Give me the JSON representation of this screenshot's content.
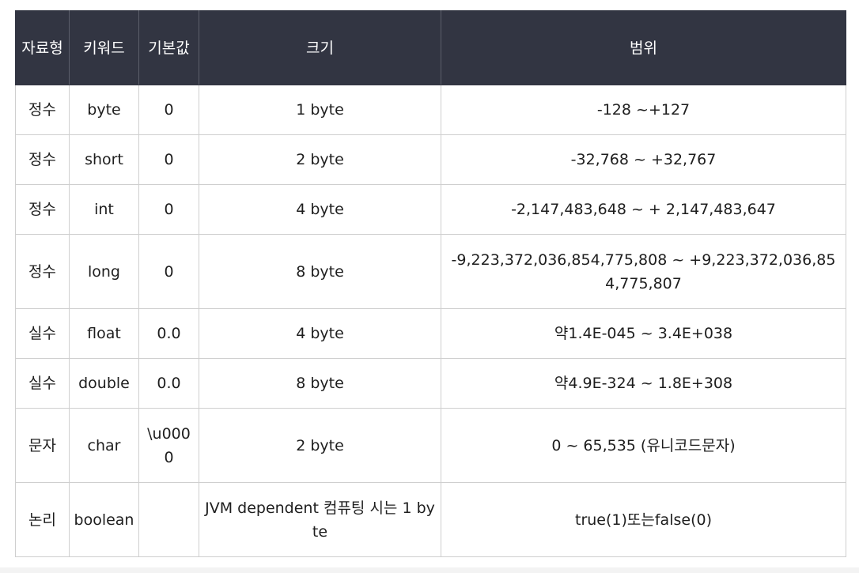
{
  "table": {
    "headers": [
      "자료형",
      "키워드",
      "기본값",
      "크기",
      "범위"
    ],
    "rows": [
      {
        "kind": "정수",
        "keyword": "byte",
        "default": "0",
        "size": "1 byte",
        "range": "-128 ~+127"
      },
      {
        "kind": "정수",
        "keyword": "short",
        "default": "0",
        "size": "2 byte",
        "range": "-32,768 ~ +32,767"
      },
      {
        "kind": "정수",
        "keyword": "int",
        "default": "0",
        "size": "4 byte",
        "range": "-2,147,483,648 ~ + 2,147,483,647"
      },
      {
        "kind": "정수",
        "keyword": "long",
        "default": "0",
        "size": "8 byte",
        "range": "-9,223,372,036,854,775,808 ~ +9,223,372,036,854,775,807"
      },
      {
        "kind": "실수",
        "keyword": "float",
        "default": "0.0",
        "size": "4 byte",
        "range": "약1.4E-045 ~ 3.4E+038"
      },
      {
        "kind": "실수",
        "keyword": "double",
        "default": "0.0",
        "size": "8 byte",
        "range": "약4.9E-324 ~ 1.8E+308"
      },
      {
        "kind": "문자",
        "keyword": "char",
        "default": "\\u0000",
        "size": "2 byte",
        "range": "0 ~ 65,535 (유니코드문자)"
      },
      {
        "kind": "논리",
        "keyword": "boolean",
        "default": "",
        "size": "JVM dependent 컴퓨팅 시는 1 byte",
        "range": "true(1)또는false(0)"
      }
    ]
  }
}
